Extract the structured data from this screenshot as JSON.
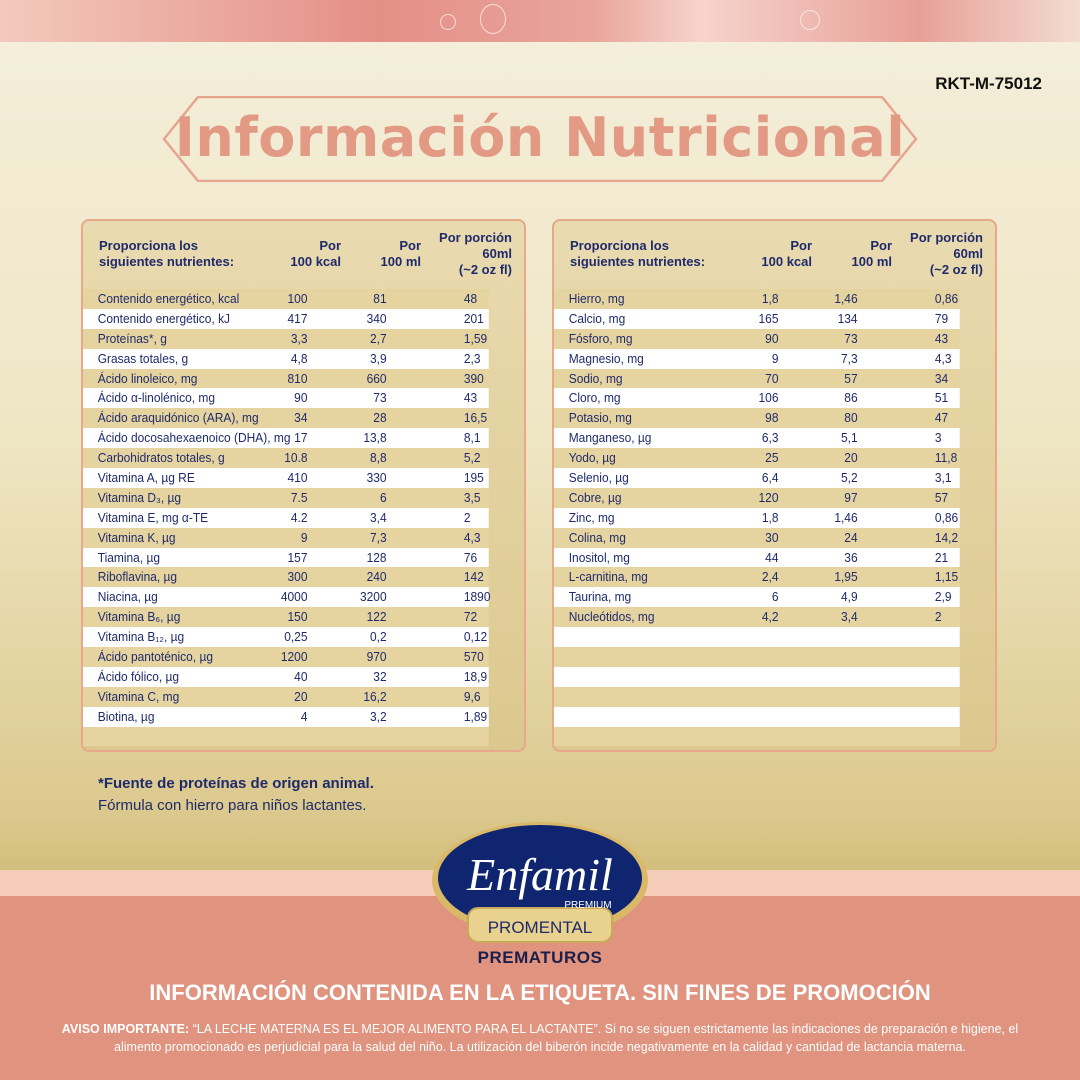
{
  "code": "RKT-M-75012",
  "title": "Información Nutricional",
  "header": {
    "col0_line1": "Proporciona los",
    "col0_line2": "siguientes nutrientes:",
    "col1_line1": "Por",
    "col1_line2": "100 kcal",
    "col2_line1": "Por",
    "col2_line2": "100 ml",
    "col3_line1": "Por porción",
    "col3_line2": "60ml",
    "col3_line3": "(~2 oz fl)"
  },
  "left_table": [
    [
      "Contenido energético, kcal",
      "100",
      "81",
      "48"
    ],
    [
      "Contenido energético, kJ",
      "417",
      "340",
      "201"
    ],
    [
      "Proteínas*, g",
      "3,3",
      "2,7",
      "1,59"
    ],
    [
      "Grasas totales, g",
      "4,8",
      "3,9",
      "2,3"
    ],
    [
      "Ácido linoleico, mg",
      "810",
      "660",
      "390"
    ],
    [
      "Ácido α-linolénico, mg",
      "90",
      "73",
      "43"
    ],
    [
      "Ácido araquidónico (ARA), mg",
      "34",
      "28",
      "16,5"
    ],
    [
      "Ácido docosahexaenoico (DHA), mg",
      "17",
      "13,8",
      "8,1"
    ],
    [
      "Carbohidratos totales, g",
      "10.8",
      "8,8",
      "5,2"
    ],
    [
      "Vitamina A, µg RE",
      "410",
      "330",
      "195"
    ],
    [
      "Vitamina D₃, µg",
      "7.5",
      "6",
      "3,5"
    ],
    [
      "Vitamina E, mg α-TE",
      "4.2",
      "3,4",
      "2"
    ],
    [
      "Vitamina K, µg",
      "9",
      "7,3",
      "4,3"
    ],
    [
      "Tiamina, µg",
      "157",
      "128",
      "76"
    ],
    [
      "Riboflavina, µg",
      "300",
      "240",
      "142"
    ],
    [
      "Niacina, µg",
      "4000",
      "3200",
      "1890"
    ],
    [
      "Vitamina B₆, µg",
      "150",
      "122",
      "72"
    ],
    [
      "Vitamina B₁₂, µg",
      "0,25",
      "0,2",
      "0,12"
    ],
    [
      "Ácido pantoténico, µg",
      "1200",
      "970",
      "570"
    ],
    [
      "Ácido fólico, µg",
      "40",
      "32",
      "18,9"
    ],
    [
      "Vitamina C, mg",
      "20",
      "16,2",
      "9,6"
    ],
    [
      "Biotina, µg",
      "4",
      "3,2",
      "1,89"
    ],
    [
      "",
      "",
      "",
      ""
    ]
  ],
  "right_table": [
    [
      "Hierro, mg",
      "1,8",
      "1,46",
      "0,86"
    ],
    [
      "Calcio, mg",
      "165",
      "134",
      "79"
    ],
    [
      "Fósforo, mg",
      "90",
      "73",
      "43"
    ],
    [
      "Magnesio, mg",
      "9",
      "7,3",
      "4,3"
    ],
    [
      "Sodio, mg",
      "70",
      "57",
      "34"
    ],
    [
      "Cloro, mg",
      "106",
      "86",
      "51"
    ],
    [
      "Potasio, mg",
      "98",
      "80",
      "47"
    ],
    [
      "Manganeso, µg",
      "6,3",
      "5,1",
      "3"
    ],
    [
      "Yodo, µg",
      "25",
      "20",
      "11,8"
    ],
    [
      "Selenio, µg",
      "6,4",
      "5,2",
      "3,1"
    ],
    [
      "Cobre, µg",
      "120",
      "97",
      "57"
    ],
    [
      "Zinc, mg",
      "1,8",
      "1,46",
      "0,86"
    ],
    [
      "Colina, mg",
      "30",
      "24",
      "14,2"
    ],
    [
      "Inositol, mg",
      "44",
      "36",
      "21"
    ],
    [
      "L-carnitina, mg",
      "2,4",
      "1,95",
      "1,15"
    ],
    [
      "Taurina, mg",
      "6",
      "4,9",
      "2,9"
    ],
    [
      "Nucleótidos, mg",
      "4,2",
      "3,4",
      "2"
    ],
    [
      "",
      "",
      "",
      ""
    ],
    [
      "",
      "",
      "",
      ""
    ],
    [
      "",
      "",
      "",
      ""
    ],
    [
      "",
      "",
      "",
      ""
    ],
    [
      "",
      "",
      "",
      ""
    ],
    [
      "",
      "",
      "",
      ""
    ]
  ],
  "footnote_bold": "*Fuente de proteínas de origen animal.",
  "footnote": "Fórmula con hierro para niños lactantes.",
  "logo": {
    "brand": "Enfamil",
    "sub": "PREMIUM",
    "product": "PROMENTAL"
  },
  "product_line": "PREMATUROS",
  "notice": "INFORMACIÓN CONTENIDA EN LA ETIQUETA. SIN FINES DE PROMOCIÓN",
  "aviso_label": "AVISO IMPORTANTE:",
  "aviso_text": " “LA LECHE MATERNA ES EL MEJOR ALIMENTO PARA EL LACTANTE”. Si no se siguen estrictamente las indicaciones de preparación e higiene, el alimento promocionado es perjudicial para la salud del niño. La utilización del biberón incide negativamente en la calidad y cantidad de lactancia materna.",
  "colors": {
    "navy": "#1f2a6b",
    "salmon": "#e0937e",
    "title": "#e39a84",
    "gold": "#d3bf7d"
  }
}
